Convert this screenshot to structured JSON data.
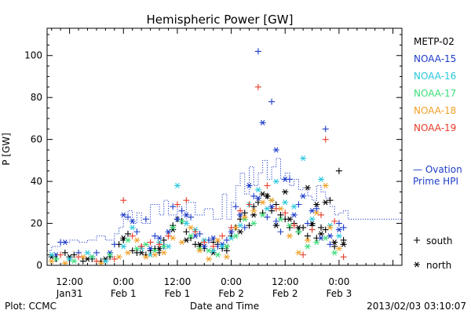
{
  "chart_data": {
    "type": "scatter",
    "title": "Hemispheric Power [GW]",
    "xlabel": "Date and Time",
    "ylabel": "P [GW]",
    "ylim": [
      0,
      113
    ],
    "xlim_hours": [
      -17,
      62
    ],
    "y_ticks": [
      0,
      20,
      40,
      60,
      80,
      100
    ],
    "x_ticks": [
      {
        "x": -12,
        "line1": "12:00",
        "line2": "Jan31"
      },
      {
        "x": 0,
        "line1": "0:00",
        "line2": "Feb 1"
      },
      {
        "x": 12,
        "line1": "12:00",
        "line2": "Feb 1"
      },
      {
        "x": 24,
        "line1": "0:00",
        "line2": "Feb 2"
      },
      {
        "x": 36,
        "line1": "12:00",
        "line2": "Feb 2"
      },
      {
        "x": 48,
        "line1": "0:00",
        "line2": "Feb 3"
      }
    ],
    "legend": {
      "position": "right",
      "entries": [
        {
          "name": "METP-02",
          "color": "#000000"
        },
        {
          "name": "NOAA-15",
          "color": "#1e3cc8"
        },
        {
          "name": "NOAA-16",
          "color": "#28c8dc"
        },
        {
          "name": "NOAA-17",
          "color": "#3cdc78"
        },
        {
          "name": "NOAA-18",
          "color": "#f0a028"
        },
        {
          "name": "NOAA-19",
          "color": "#e63c28"
        }
      ],
      "ovation_line1": "— Ovation",
      "ovation_line2": "Prime HPI",
      "ovation_color": "#1e3cc8",
      "south_label": "south",
      "north_label": "north"
    },
    "ovation_series": {
      "x": [
        -17,
        -16,
        -14,
        -12,
        -10,
        -8,
        -6,
        -4,
        -2,
        -1,
        0,
        1,
        2,
        3,
        4,
        6,
        8,
        9,
        10,
        12,
        13,
        14,
        16,
        18,
        20,
        22,
        23,
        24,
        25,
        26,
        27,
        28,
        29,
        30,
        31,
        32,
        33,
        34,
        35,
        36,
        37,
        38,
        39,
        40,
        41,
        42,
        43,
        44,
        45,
        46,
        47,
        48,
        49,
        50
      ],
      "y": [
        7,
        9,
        11,
        12,
        11,
        12,
        14,
        12,
        15,
        18,
        22,
        26,
        20,
        25,
        20,
        29,
        24,
        31,
        24,
        28,
        20,
        30,
        24,
        27,
        22,
        34,
        22,
        30,
        38,
        44,
        34,
        47,
        38,
        44,
        50,
        41,
        47,
        51,
        41,
        44,
        38,
        41,
        36,
        37,
        33,
        31,
        38,
        35,
        32,
        28,
        24,
        25,
        26,
        22
      ]
    },
    "series": [
      {
        "name": "METP-02",
        "hemisphere": "south",
        "points": [
          [
            -15,
            3
          ],
          [
            -13,
            6
          ],
          [
            -11,
            5
          ],
          [
            -9,
            2
          ],
          [
            -7,
            3
          ],
          [
            -5,
            2
          ],
          [
            -3,
            4
          ],
          [
            -1,
            10
          ],
          [
            0,
            12
          ],
          [
            1,
            15
          ],
          [
            2,
            7
          ],
          [
            3,
            6
          ],
          [
            4,
            9
          ],
          [
            5,
            5
          ],
          [
            6,
            7
          ],
          [
            7,
            8
          ],
          [
            8,
            6
          ],
          [
            9,
            12
          ],
          [
            10,
            14
          ],
          [
            11,
            19
          ],
          [
            12,
            22
          ],
          [
            13,
            21
          ],
          [
            14,
            16
          ],
          [
            15,
            13
          ],
          [
            16,
            10
          ],
          [
            17,
            9
          ],
          [
            18,
            8
          ],
          [
            19,
            12
          ],
          [
            20,
            11
          ],
          [
            21,
            10
          ],
          [
            22,
            8
          ],
          [
            23,
            7
          ],
          [
            24,
            14
          ],
          [
            25,
            18
          ],
          [
            26,
            22
          ],
          [
            27,
            25
          ],
          [
            28,
            19
          ],
          [
            29,
            28
          ],
          [
            30,
            30
          ],
          [
            31,
            25
          ],
          [
            32,
            33
          ],
          [
            33,
            26
          ],
          [
            34,
            29
          ],
          [
            35,
            24
          ],
          [
            36,
            22
          ],
          [
            37,
            18
          ],
          [
            38,
            20
          ],
          [
            39,
            16
          ],
          [
            40,
            18
          ],
          [
            41,
            14
          ],
          [
            42,
            19
          ],
          [
            43,
            13
          ],
          [
            44,
            18
          ],
          [
            45,
            17
          ],
          [
            46,
            31
          ],
          [
            47,
            9
          ],
          [
            48,
            45
          ],
          [
            49,
            12
          ]
        ]
      },
      {
        "name": "METP-02",
        "hemisphere": "north",
        "points": [
          [
            -16,
            4
          ],
          [
            -12,
            4
          ],
          [
            -8,
            3
          ],
          [
            -4,
            3
          ],
          [
            0,
            13
          ],
          [
            4,
            6
          ],
          [
            8,
            8
          ],
          [
            11,
            17
          ],
          [
            14,
            12
          ],
          [
            17,
            10
          ],
          [
            20,
            6
          ],
          [
            23,
            9
          ],
          [
            26,
            16
          ],
          [
            29,
            24
          ],
          [
            31,
            34
          ],
          [
            32,
            33
          ],
          [
            34,
            19
          ],
          [
            36,
            35
          ],
          [
            37,
            22
          ],
          [
            39,
            18
          ],
          [
            41,
            37
          ],
          [
            42,
            20
          ],
          [
            43,
            29
          ],
          [
            44,
            15
          ],
          [
            45,
            30
          ],
          [
            47,
            11
          ],
          [
            49,
            10
          ]
        ]
      },
      {
        "name": "NOAA-15",
        "hemisphere": "south",
        "points": [
          [
            -14,
            11
          ],
          [
            -10,
            6
          ],
          [
            -6,
            6
          ],
          [
            -2,
            10
          ],
          [
            1,
            23
          ],
          [
            3,
            16
          ],
          [
            5,
            22
          ],
          [
            7,
            14
          ],
          [
            9,
            9
          ],
          [
            11,
            28
          ],
          [
            13,
            26
          ],
          [
            15,
            23
          ],
          [
            17,
            15
          ],
          [
            19,
            12
          ],
          [
            21,
            9
          ],
          [
            23,
            12
          ],
          [
            25,
            28
          ],
          [
            27,
            18
          ],
          [
            29,
            33
          ],
          [
            30,
            102
          ],
          [
            32,
            23
          ],
          [
            33,
            78
          ],
          [
            34,
            21
          ],
          [
            35,
            16
          ],
          [
            37,
            41
          ],
          [
            39,
            29
          ],
          [
            41,
            20
          ],
          [
            43,
            27
          ],
          [
            45,
            65
          ],
          [
            46,
            10
          ],
          [
            48,
            20
          ],
          [
            49,
            18
          ]
        ]
      },
      {
        "name": "NOAA-15",
        "hemisphere": "north",
        "points": [
          [
            -15,
            5
          ],
          [
            -13,
            11
          ],
          [
            -7,
            4
          ],
          [
            -3,
            6
          ],
          [
            0,
            24
          ],
          [
            2,
            21
          ],
          [
            6,
            8
          ],
          [
            8,
            13
          ],
          [
            10,
            16
          ],
          [
            12,
            22
          ],
          [
            14,
            24
          ],
          [
            16,
            14
          ],
          [
            18,
            9
          ],
          [
            20,
            13
          ],
          [
            22,
            10
          ],
          [
            24,
            16
          ],
          [
            26,
            24
          ],
          [
            28,
            38
          ],
          [
            30,
            32
          ],
          [
            31,
            68
          ],
          [
            33,
            28
          ],
          [
            34,
            55
          ],
          [
            36,
            41
          ],
          [
            38,
            24
          ],
          [
            40,
            33
          ],
          [
            42,
            26
          ],
          [
            44,
            13
          ],
          [
            46,
            14
          ],
          [
            48,
            17
          ]
        ]
      },
      {
        "name": "NOAA-16",
        "hemisphere": "north",
        "points": [
          [
            -16,
            5
          ],
          [
            -12,
            3
          ],
          [
            -8,
            6
          ],
          [
            -4,
            2
          ],
          [
            0,
            9
          ],
          [
            2,
            18
          ],
          [
            4,
            8
          ],
          [
            6,
            5
          ],
          [
            8,
            11
          ],
          [
            10,
            9
          ],
          [
            12,
            38
          ],
          [
            14,
            20
          ],
          [
            16,
            17
          ],
          [
            18,
            12
          ],
          [
            20,
            7
          ],
          [
            22,
            9
          ],
          [
            24,
            13
          ],
          [
            26,
            19
          ],
          [
            28,
            29
          ],
          [
            30,
            36
          ],
          [
            32,
            27
          ],
          [
            34,
            40
          ],
          [
            36,
            30
          ],
          [
            38,
            28
          ],
          [
            40,
            51
          ],
          [
            42,
            22
          ],
          [
            44,
            41
          ],
          [
            46,
            19
          ],
          [
            48,
            14
          ]
        ]
      },
      {
        "name": "NOAA-17",
        "hemisphere": "north",
        "points": [
          [
            -15,
            3
          ],
          [
            -11,
            2
          ],
          [
            -7,
            4
          ],
          [
            -3,
            5
          ],
          [
            1,
            12
          ],
          [
            3,
            8
          ],
          [
            5,
            10
          ],
          [
            7,
            7
          ],
          [
            9,
            9
          ],
          [
            11,
            18
          ],
          [
            13,
            21
          ],
          [
            15,
            14
          ],
          [
            17,
            8
          ],
          [
            19,
            7
          ],
          [
            21,
            5
          ],
          [
            23,
            9
          ],
          [
            25,
            14
          ],
          [
            27,
            22
          ],
          [
            29,
            20
          ],
          [
            31,
            24
          ],
          [
            33,
            31
          ],
          [
            35,
            22
          ],
          [
            37,
            19
          ],
          [
            39,
            16
          ],
          [
            41,
            9
          ],
          [
            43,
            11
          ],
          [
            45,
            13
          ],
          [
            47,
            6
          ]
        ]
      },
      {
        "name": "NOAA-18",
        "hemisphere": "north",
        "points": [
          [
            -16,
            2
          ],
          [
            -13,
            1
          ],
          [
            -9,
            4
          ],
          [
            -5,
            1
          ],
          [
            -1,
            4
          ],
          [
            1,
            6
          ],
          [
            3,
            12
          ],
          [
            5,
            4
          ],
          [
            7,
            5
          ],
          [
            9,
            6
          ],
          [
            11,
            13
          ],
          [
            13,
            11
          ],
          [
            15,
            18
          ],
          [
            17,
            7
          ],
          [
            19,
            3
          ],
          [
            21,
            12
          ],
          [
            23,
            4
          ],
          [
            25,
            18
          ],
          [
            27,
            23
          ],
          [
            29,
            26
          ],
          [
            31,
            30
          ],
          [
            33,
            31
          ],
          [
            35,
            27
          ],
          [
            37,
            14
          ],
          [
            39,
            6
          ],
          [
            41,
            12
          ],
          [
            43,
            25
          ],
          [
            45,
            38
          ],
          [
            46,
            18
          ],
          [
            48,
            8
          ]
        ]
      },
      {
        "name": "NOAA-19",
        "hemisphere": "south",
        "points": [
          [
            -14,
            5
          ],
          [
            -10,
            4
          ],
          [
            -6,
            2
          ],
          [
            -2,
            3
          ],
          [
            0,
            31
          ],
          [
            2,
            14
          ],
          [
            4,
            9
          ],
          [
            6,
            11
          ],
          [
            8,
            10
          ],
          [
            10,
            14
          ],
          [
            12,
            29
          ],
          [
            14,
            31
          ],
          [
            16,
            16
          ],
          [
            18,
            11
          ],
          [
            20,
            9
          ],
          [
            22,
            14
          ],
          [
            24,
            18
          ],
          [
            26,
            26
          ],
          [
            28,
            29
          ],
          [
            30,
            85
          ],
          [
            32,
            38
          ],
          [
            34,
            27
          ],
          [
            36,
            25
          ],
          [
            38,
            19
          ],
          [
            40,
            5
          ],
          [
            42,
            17
          ],
          [
            44,
            24
          ],
          [
            45,
            60
          ],
          [
            47,
            21
          ],
          [
            49,
            4
          ]
        ]
      }
    ]
  },
  "footer": {
    "left": "Plot: CCMC",
    "right": "2013/02/03 03:10:07"
  }
}
